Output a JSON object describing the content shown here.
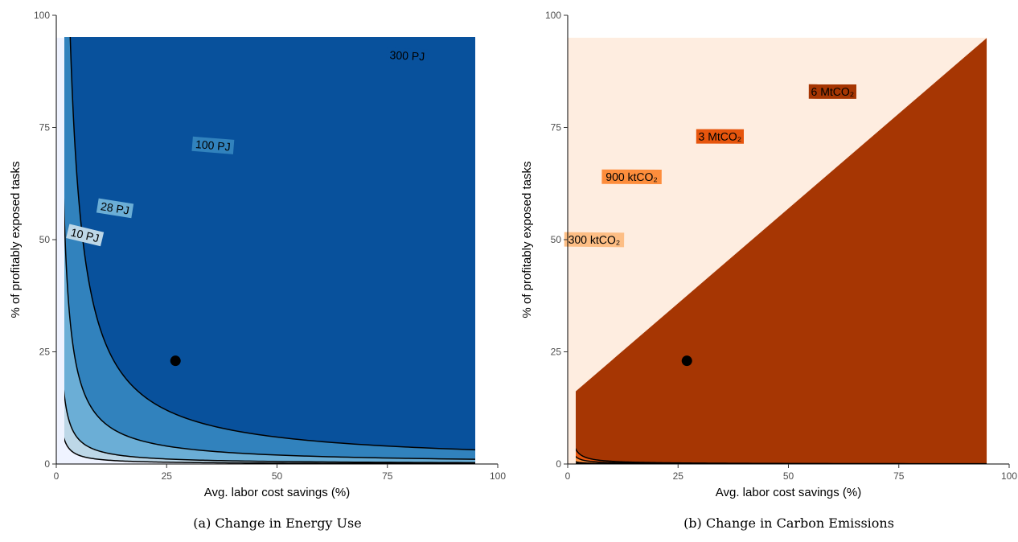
{
  "chart_data": [
    {
      "type": "contour",
      "caption": "(a) Change in Energy Use",
      "xlabel": "Avg. labor cost savings (%)",
      "ylabel": "% of profitably exposed tasks",
      "xlim": [
        0,
        100
      ],
      "ylim": [
        0,
        100
      ],
      "xticks": [
        "0",
        "25",
        "50",
        "75",
        "100"
      ],
      "yticks": [
        "0",
        "25",
        "50",
        "75",
        "100"
      ],
      "data_extent": {
        "x": [
          0,
          95
        ],
        "y": [
          0,
          95
        ]
      },
      "grid": false,
      "levels": [
        {
          "value": 10,
          "label": "10 PJ"
        },
        {
          "value": 28,
          "label": "28 PJ"
        },
        {
          "value": 100,
          "label": "100 PJ"
        },
        {
          "value": 300,
          "label": "300 PJ"
        }
      ],
      "label_positions": [
        {
          "label": "10 PJ",
          "x": 6.5,
          "y": 51
        },
        {
          "label": "28 PJ",
          "x": 13.3,
          "y": 57
        },
        {
          "label": "100 PJ",
          "x": 35.5,
          "y": 71
        },
        {
          "label": "300 PJ",
          "x": 79.5,
          "y": 91
        }
      ],
      "fill_colors": [
        "#eff3ff",
        "#bdd7e7",
        "#6baed6",
        "#3182bd",
        "#08519c"
      ],
      "point": {
        "x": 27,
        "y": 23
      }
    },
    {
      "type": "contour",
      "caption": "(b) Change in Carbon Emissions",
      "xlabel": "Avg. labor cost savings (%)",
      "ylabel": "% of profitably exposed tasks",
      "xlim": [
        0,
        100
      ],
      "ylim": [
        0,
        100
      ],
      "xticks": [
        "0",
        "25",
        "50",
        "75",
        "100"
      ],
      "yticks": [
        "0",
        "25",
        "50",
        "75",
        "100"
      ],
      "data_extent": {
        "x": [
          0,
          95
        ],
        "y": [
          0,
          95
        ]
      },
      "grid": false,
      "levels": [
        {
          "value": 0.3,
          "label": "300 ktCO₂"
        },
        {
          "value": 0.9,
          "label": "900 ktCO₂"
        },
        {
          "value": 3,
          "label": "3 MtCO₂"
        },
        {
          "value": 6,
          "label": "6 MtCO₂"
        }
      ],
      "label_positions": [
        {
          "label": "300 ktCO₂",
          "x": 6,
          "y": 50
        },
        {
          "label": "900 ktCO₂",
          "x": 14.5,
          "y": 64
        },
        {
          "label": "3 MtCO₂",
          "x": 34.5,
          "y": 73
        },
        {
          "label": "6 MtCO₂",
          "x": 60,
          "y": 83
        }
      ],
      "fill_colors": [
        "#feede0",
        "#fdbe85",
        "#fd8d3c",
        "#e6550d",
        "#a63603"
      ],
      "point": {
        "x": 27,
        "y": 23
      }
    }
  ]
}
